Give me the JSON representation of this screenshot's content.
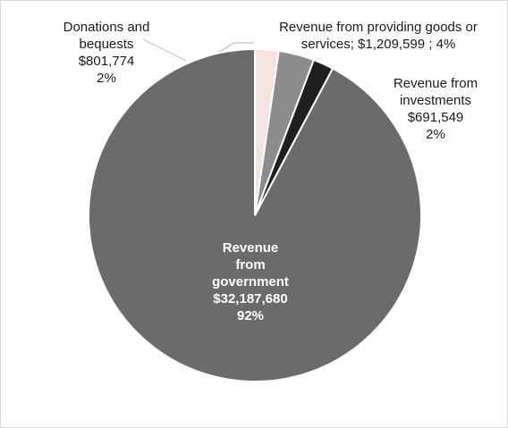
{
  "chart_data": {
    "type": "pie",
    "title": "",
    "legend": "none",
    "slices": [
      {
        "name": "Revenue from government",
        "value": 32187680,
        "value_label": "$32,187,680",
        "percent_label": "92%",
        "color": "#6b6b6b"
      },
      {
        "name": "Donations and bequests",
        "value": 801774,
        "value_label": "$801,774",
        "percent_label": "2%",
        "color": "#f4e3de"
      },
      {
        "name": "Revenue from providing goods or services",
        "value": 1209599,
        "value_label": "$1,209,599",
        "percent_label": "4%",
        "color": "#8c8c8c"
      },
      {
        "name": "Revenue from investments",
        "value": 691549,
        "value_label": "$691,549",
        "percent_label": "2%",
        "color": "#1f1f1f"
      }
    ]
  },
  "labels": {
    "government": {
      "line1": "Revenue",
      "line2": "from",
      "line3": "government",
      "line4": "$32,187,680",
      "line5": "92%"
    },
    "donations": {
      "line1": "Donations and",
      "line2": "bequests",
      "line3": "$801,774",
      "line4": "2%"
    },
    "goods": {
      "line1": "Revenue from providing goods or",
      "line2": "services;  $1,209,599 ; 4%"
    },
    "investments": {
      "line1": "Revenue from",
      "line2": "investments",
      "line3": "$691,549",
      "line4": "2%"
    }
  }
}
